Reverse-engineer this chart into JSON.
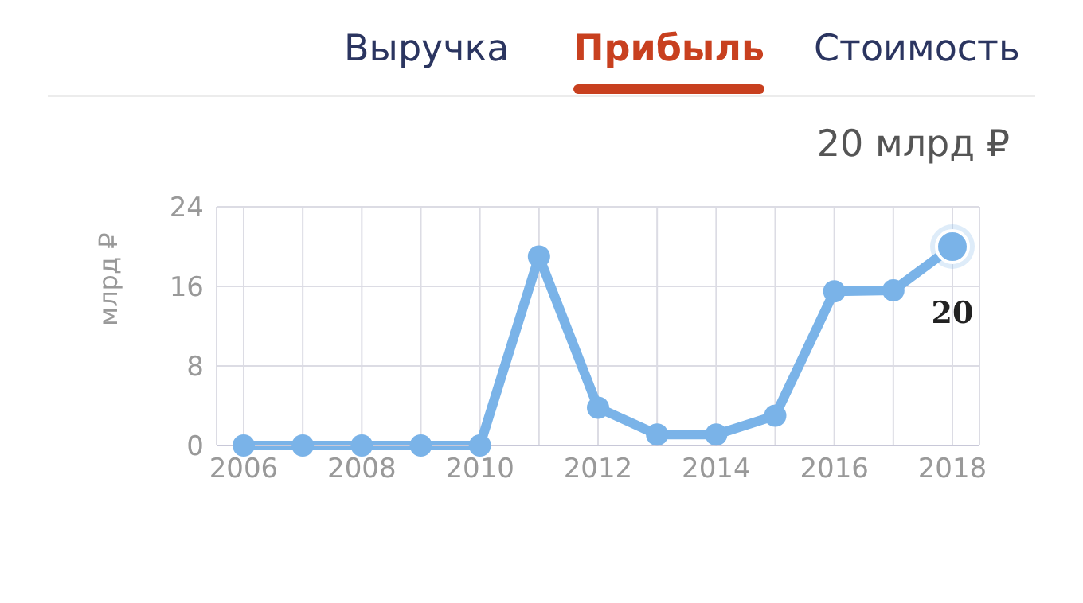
{
  "chart_data": {
    "type": "line",
    "title": "Прибыль",
    "subtitle": "20 млрд ₽",
    "annotations": [
      "Выручка",
      "Стоимость"
    ],
    "ylabel": "млрд ₽",
    "x": [
      2006,
      2007,
      2008,
      2009,
      2010,
      2011,
      2012,
      2013,
      2014,
      2015,
      2016,
      2017,
      2018
    ],
    "series": [
      {
        "color": "#7ab3e8",
        "values": [
          0,
          0,
          0,
          0,
          0,
          19,
          3.8,
          1.1,
          1.1,
          3,
          15.5,
          15.6,
          20
        ],
        "value_labels": [
          null,
          null,
          null,
          null,
          null,
          null,
          null,
          null,
          null,
          null,
          null,
          null,
          "20"
        ]
      }
    ],
    "xlim": [
      2006,
      2018
    ],
    "xticks": [
      2006,
      {
        "value": 2007,
        "label": null
      },
      2008,
      {
        "value": 2009,
        "label": null
      },
      2010,
      {
        "value": 2011,
        "label": null
      },
      2012,
      {
        "value": 2013,
        "label": null
      },
      2014,
      {
        "value": 2015,
        "label": null
      },
      2016,
      {
        "value": 2017,
        "label": null
      },
      2018
    ],
    "ylim": [
      0,
      24
    ],
    "yticks": [
      0,
      8,
      16,
      24
    ],
    "grid": true,
    "marker": "circle",
    "line_style": "solid"
  }
}
